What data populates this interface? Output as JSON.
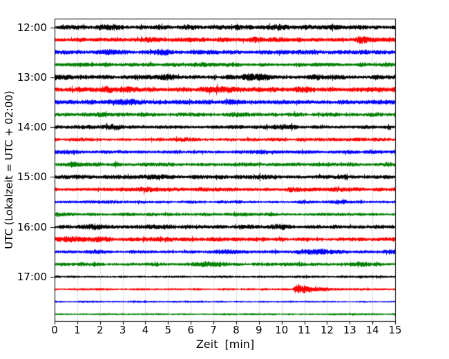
{
  "chart_data": {
    "type": "line",
    "subtype": "seismogram-helicorder",
    "title": "",
    "xlabel": "Zeit  [min]",
    "ylabel": "UTC (Lokalzeit = UTC + 02:00)",
    "xlim": [
      0,
      15
    ],
    "x_tick_labels": [
      "0",
      "1",
      "2",
      "3",
      "4",
      "5",
      "6",
      "7",
      "8",
      "9",
      "10",
      "11",
      "12",
      "13",
      "14",
      "15"
    ],
    "y_tick_labels": [
      "12:00",
      "13:00",
      "14:00",
      "15:00",
      "16:00",
      "17:00"
    ],
    "y_tick_every_n_traces": 4,
    "grid": "vertical-dotted",
    "grid_color": "#9b9b9b",
    "frame_color": "#000000",
    "background_color": "#ffffff",
    "minutes_per_trace": 15,
    "colors": {
      "black": "#000000",
      "red": "#ff0000",
      "blue": "#0000ff",
      "green": "#008000"
    },
    "traces": [
      {
        "time": "12:00",
        "color": "black",
        "base_amp": 2.8,
        "events": [
          {
            "t": 2.3,
            "a": 2.2,
            "w": 0.35
          },
          {
            "t": 5.9,
            "a": 1.5,
            "w": 0.3
          },
          {
            "t": 9.8,
            "a": 2.0,
            "w": 0.25
          },
          {
            "t": 12.1,
            "a": 1.2,
            "w": 0.3
          }
        ]
      },
      {
        "time": "12:15",
        "color": "red",
        "base_amp": 2.8,
        "events": [
          {
            "t": 4.3,
            "a": 1.5,
            "w": 0.4
          },
          {
            "t": 9.0,
            "a": 1.2,
            "w": 0.5
          },
          {
            "t": 13.5,
            "a": 2.2,
            "w": 0.18
          }
        ]
      },
      {
        "time": "12:30",
        "color": "blue",
        "base_amp": 2.8,
        "events": [
          {
            "t": 2.4,
            "a": 1.2,
            "w": 0.3
          },
          {
            "t": 4.8,
            "a": 1.8,
            "w": 0.25
          },
          {
            "t": 13.6,
            "a": 1.5,
            "w": 0.2
          }
        ]
      },
      {
        "time": "12:45",
        "color": "green",
        "base_amp": 2.5,
        "events": [
          {
            "t": 7.0,
            "a": 0.8,
            "w": 0.6
          }
        ]
      },
      {
        "time": "13:00",
        "color": "black",
        "base_amp": 2.8,
        "events": [
          {
            "t": 0.4,
            "a": 1.8,
            "w": 0.25
          },
          {
            "t": 4.9,
            "a": 2.0,
            "w": 0.3
          },
          {
            "t": 8.9,
            "a": 2.4,
            "w": 0.5
          },
          {
            "t": 11.5,
            "a": 1.2,
            "w": 0.4
          }
        ]
      },
      {
        "time": "13:15",
        "color": "red",
        "base_amp": 3.0,
        "events": [
          {
            "t": 2.6,
            "a": 1.6,
            "w": 0.8
          },
          {
            "t": 7.4,
            "a": 1.8,
            "w": 0.6
          },
          {
            "t": 11.0,
            "a": 1.0,
            "w": 0.4
          }
        ]
      },
      {
        "time": "13:30",
        "color": "blue",
        "base_amp": 2.8,
        "events": [
          {
            "t": 3.2,
            "a": 1.2,
            "w": 0.4
          },
          {
            "t": 8.0,
            "a": 0.8,
            "w": 0.5
          }
        ]
      },
      {
        "time": "13:45",
        "color": "green",
        "base_amp": 2.5,
        "events": [
          {
            "t": 2.0,
            "a": 0.8,
            "w": 0.5
          },
          {
            "t": 8.2,
            "a": 1.2,
            "w": 0.4
          }
        ]
      },
      {
        "time": "14:00",
        "color": "black",
        "base_amp": 2.5,
        "events": [
          {
            "t": 2.6,
            "a": 1.4,
            "w": 0.3
          },
          {
            "t": 10.0,
            "a": 1.2,
            "w": 0.4
          }
        ]
      },
      {
        "time": "14:15",
        "color": "red",
        "base_amp": 2.2,
        "events": [
          {
            "t": 6.0,
            "a": 0.6,
            "w": 0.5
          }
        ]
      },
      {
        "time": "14:30",
        "color": "blue",
        "base_amp": 2.2,
        "events": [
          {
            "t": 0.5,
            "a": 0.8,
            "w": 0.3
          },
          {
            "t": 9.5,
            "a": 0.6,
            "w": 0.5
          }
        ]
      },
      {
        "time": "14:45",
        "color": "green",
        "base_amp": 2.5,
        "events": [
          {
            "t": 0.7,
            "a": 1.2,
            "w": 0.3
          },
          {
            "t": 4.2,
            "a": 0.8,
            "w": 0.4
          }
        ]
      },
      {
        "time": "15:00",
        "color": "black",
        "base_amp": 2.5,
        "events": [
          {
            "t": 1.0,
            "a": 1.2,
            "w": 0.4
          },
          {
            "t": 4.0,
            "a": 1.2,
            "w": 0.4
          },
          {
            "t": 9.0,
            "a": 1.0,
            "w": 0.5
          }
        ]
      },
      {
        "time": "15:15",
        "color": "red",
        "base_amp": 2.5,
        "events": [
          {
            "t": 4.0,
            "a": 1.2,
            "w": 0.4
          },
          {
            "t": 10.6,
            "a": 1.4,
            "w": 0.3
          },
          {
            "t": 12.7,
            "a": 1.4,
            "w": 0.3
          }
        ]
      },
      {
        "time": "15:30",
        "color": "blue",
        "base_amp": 1.9,
        "events": [
          {
            "t": 12.7,
            "a": 1.4,
            "w": 0.25
          }
        ]
      },
      {
        "time": "15:45",
        "color": "green",
        "base_amp": 2.1,
        "events": [
          {
            "t": 0.3,
            "a": 1.0,
            "w": 0.3
          }
        ]
      },
      {
        "time": "16:00",
        "color": "black",
        "base_amp": 2.5,
        "events": [
          {
            "t": 1.7,
            "a": 1.8,
            "w": 0.3
          },
          {
            "t": 4.3,
            "a": 1.4,
            "w": 0.3
          },
          {
            "t": 10.0,
            "a": 1.4,
            "w": 0.4
          }
        ]
      },
      {
        "time": "16:15",
        "color": "red",
        "base_amp": 2.5,
        "events": [
          {
            "t": 0.8,
            "a": 2.4,
            "w": 0.45
          },
          {
            "t": 2.0,
            "a": 1.6,
            "w": 0.3
          },
          {
            "t": 5.0,
            "a": 1.2,
            "w": 0.4
          }
        ]
      },
      {
        "time": "16:30",
        "color": "blue",
        "base_amp": 2.1,
        "events": [
          {
            "t": 1.7,
            "a": 1.4,
            "w": 0.3
          },
          {
            "t": 7.5,
            "a": 1.2,
            "w": 0.4
          },
          {
            "t": 11.5,
            "a": 1.8,
            "w": 0.7
          },
          {
            "t": 14.8,
            "a": 1.6,
            "w": 0.2
          }
        ]
      },
      {
        "time": "16:45",
        "color": "green",
        "base_amp": 2.1,
        "events": [
          {
            "t": 6.8,
            "a": 2.0,
            "w": 0.45
          },
          {
            "t": 13.5,
            "a": 1.2,
            "w": 0.3
          }
        ]
      },
      {
        "time": "17:00",
        "color": "black",
        "base_amp": 1.5,
        "events": []
      },
      {
        "time": "17:15",
        "color": "red",
        "base_amp": 1.4,
        "events": [
          {
            "t": 10.65,
            "a": 5.5,
            "w": 0.08,
            "decay": 0.85
          }
        ]
      },
      {
        "time": "17:30",
        "color": "blue",
        "base_amp": 1.2,
        "events": []
      },
      {
        "time": "17:45",
        "color": "green",
        "base_amp": 1.2,
        "events": []
      }
    ]
  }
}
